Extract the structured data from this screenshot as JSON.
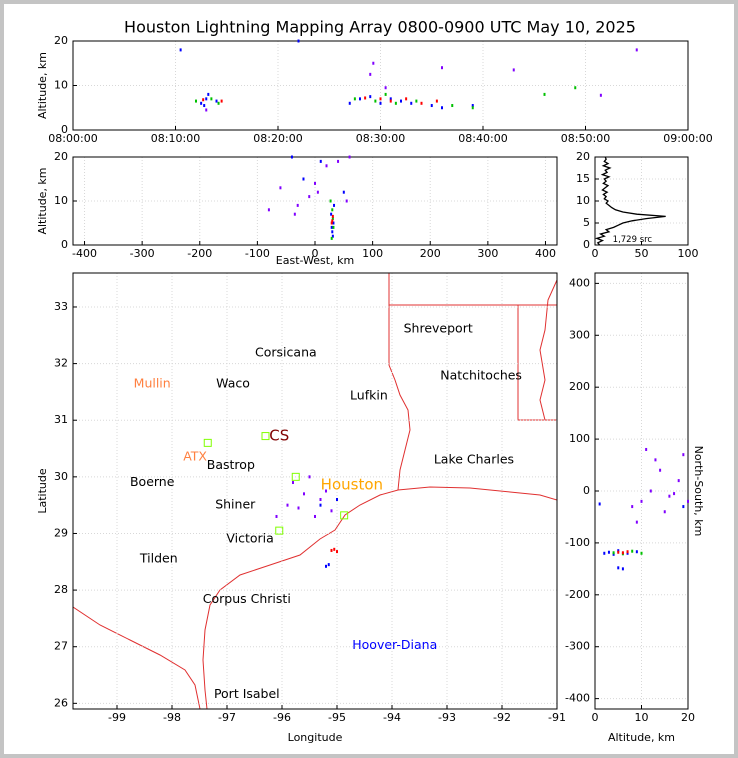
{
  "chart_data": [
    {
      "type": "scatter",
      "title": "Houston Lightning Mapping Array 0800-0900 UTC May 10, 2025",
      "ylabel": "Altitude, km",
      "xlim": [
        0,
        60
      ],
      "xticks": [
        {
          "value": 0,
          "label": "08:00:00"
        },
        {
          "value": 10,
          "label": "08:10:00"
        },
        {
          "value": 20,
          "label": "08:20:00"
        },
        {
          "value": 30,
          "label": "08:30:00"
        },
        {
          "value": 40,
          "label": "08:40:00"
        },
        {
          "value": 50,
          "label": "08:50:00"
        },
        {
          "value": 60,
          "label": "09:00:00"
        }
      ],
      "ylim": [
        0,
        20
      ],
      "yticks": [
        0,
        10,
        20
      ],
      "grid": true,
      "series": [
        {
          "color": "#0000ff",
          "x": [
            12.5,
            13,
            12.8,
            14,
            13.2,
            27,
            28,
            29,
            30,
            31,
            32,
            33,
            35,
            36,
            39,
            10.5,
            22
          ],
          "values": [
            6,
            7,
            5.5,
            6.5,
            8,
            6,
            7,
            7.5,
            6,
            7,
            6.5,
            6,
            5.5,
            5,
            5.5,
            18,
            20
          ]
        },
        {
          "color": "#00c000",
          "x": [
            12,
            13.5,
            14.2,
            27.5,
            29.5,
            30.5,
            31.5,
            33.5,
            37,
            39,
            46,
            49
          ],
          "values": [
            6.5,
            7,
            6,
            7,
            6.5,
            8,
            6,
            6.5,
            5.5,
            5,
            8,
            9.5
          ]
        },
        {
          "color": "#ff0000",
          "x": [
            12.7,
            14.5,
            28.5,
            30,
            31,
            32.5,
            34,
            35.5
          ],
          "values": [
            6.8,
            6.5,
            7.2,
            7,
            6.5,
            7,
            6,
            6.5
          ]
        },
        {
          "color": "#8000ff",
          "x": [
            13,
            29,
            29.3,
            30.5,
            36,
            43,
            51.5,
            55
          ],
          "values": [
            4.5,
            12.5,
            15,
            9.5,
            14,
            13.5,
            7.8,
            18
          ]
        }
      ]
    },
    {
      "type": "scatter",
      "xlabel": "East-West, km",
      "ylabel": "Altitude, km",
      "xlim": [
        -420,
        420
      ],
      "xticks": [
        -400,
        -300,
        -200,
        -100,
        0,
        100,
        200,
        300,
        400
      ],
      "ylim": [
        0,
        20
      ],
      "yticks": [
        0,
        10,
        20
      ],
      "grid": true,
      "series": [
        {
          "color": "#0000ff",
          "x": [
            30,
            32,
            28,
            31,
            33,
            29,
            -40,
            10,
            -20,
            50
          ],
          "values": [
            3,
            5,
            7,
            2,
            9,
            4,
            20,
            19,
            15,
            12
          ]
        },
        {
          "color": "#00c000",
          "x": [
            31,
            30,
            29,
            32,
            27
          ],
          "values": [
            6,
            8,
            1.5,
            4,
            10
          ]
        },
        {
          "color": "#ff0000",
          "x": [
            30,
            31,
            29
          ],
          "values": [
            5.5,
            6.5,
            5
          ]
        },
        {
          "color": "#8000ff",
          "x": [
            0,
            -30,
            -80,
            -35,
            55,
            20,
            5,
            -10,
            40,
            60,
            -60
          ],
          "values": [
            14,
            9,
            8,
            7,
            10,
            18,
            12,
            11,
            19,
            20,
            13
          ]
        }
      ]
    },
    {
      "type": "line",
      "xlim": [
        0,
        100
      ],
      "xticks": [
        0,
        50,
        100
      ],
      "ylim": [
        0,
        20
      ],
      "yticks": [
        0,
        5,
        10,
        15,
        20
      ],
      "grid": true,
      "annotations": [
        {
          "text": "1,729 src",
          "x": 19,
          "y": 1.2
        }
      ],
      "series": [
        {
          "color": "#000000",
          "x": [
            5,
            3,
            8,
            2,
            10,
            6,
            15,
            12,
            20,
            25,
            30,
            40,
            55,
            76,
            45,
            30,
            22,
            18,
            15,
            12,
            14,
            10,
            12,
            9,
            13,
            8,
            11,
            14,
            9,
            12,
            10,
            15,
            8,
            13,
            11,
            16,
            9,
            14,
            10,
            12,
            11
          ],
          "values": [
            0,
            0.5,
            1,
            1.5,
            2,
            2.5,
            3,
            3.5,
            4,
            4.5,
            5,
            5.5,
            6,
            6.5,
            7,
            7.5,
            8,
            8.5,
            9,
            9.5,
            10,
            10.5,
            11,
            11.5,
            12,
            12.5,
            13,
            13.5,
            14,
            14.5,
            15,
            15.5,
            16,
            16.5,
            17,
            17.5,
            18,
            18.5,
            19,
            19.5,
            20
          ]
        }
      ]
    },
    {
      "type": "map",
      "xlabel": "Longitude",
      "ylabel": "Latitude",
      "xlim": [
        -99.8,
        -91
      ],
      "xticks": [
        -99,
        -98,
        -97,
        -96,
        -95,
        -94,
        -93,
        -92,
        -91
      ],
      "ylim": [
        25.9,
        33.6
      ],
      "yticks": [
        26,
        27,
        28,
        29,
        30,
        31,
        32,
        33
      ],
      "grid": true,
      "annotations": [
        {
          "text": "Shreveport",
          "x": -93.16,
          "y": 32.61,
          "color": "#000000"
        },
        {
          "text": "Corsicana",
          "x": -95.93,
          "y": 32.19,
          "color": "#000000"
        },
        {
          "text": "Mullin",
          "x": -98.36,
          "y": 31.64,
          "color": "#ff8040"
        },
        {
          "text": "Waco",
          "x": -96.89,
          "y": 31.64,
          "color": "#000000"
        },
        {
          "text": "Natchitoches",
          "x": -92.38,
          "y": 31.78,
          "color": "#000000"
        },
        {
          "text": "Lufkin",
          "x": -94.42,
          "y": 31.43,
          "color": "#000000"
        },
        {
          "text": "CS",
          "x": -96.05,
          "y": 30.72,
          "color": "#800000"
        },
        {
          "text": "ATX",
          "x": -97.58,
          "y": 30.35,
          "color": "#ff8040"
        },
        {
          "text": "Bastrop",
          "x": -96.93,
          "y": 30.2,
          "color": "#000000"
        },
        {
          "text": "Lake Charles",
          "x": -92.51,
          "y": 30.3,
          "color": "#000000"
        },
        {
          "text": "Boerne",
          "x": -98.36,
          "y": 29.9,
          "color": "#000000"
        },
        {
          "text": "Houston",
          "x": -94.73,
          "y": 29.86,
          "color": "#ffa500"
        },
        {
          "text": "Shiner",
          "x": -96.85,
          "y": 29.5,
          "color": "#000000"
        },
        {
          "text": "Victoria",
          "x": -96.58,
          "y": 28.9,
          "color": "#000000"
        },
        {
          "text": "Tilden",
          "x": -98.24,
          "y": 28.55,
          "color": "#000000"
        },
        {
          "text": "Corpus Christi",
          "x": -96.64,
          "y": 27.83,
          "color": "#000000"
        },
        {
          "text": "Hoover-Diana",
          "x": -93.95,
          "y": 27.02,
          "color": "#0000ff"
        },
        {
          "text": "Port Isabel",
          "x": -96.64,
          "y": 26.16,
          "color": "#000000"
        }
      ],
      "series": [
        {
          "color": "#8000ff",
          "x": [
            -95.9,
            -95.6,
            -95.5,
            -95.8,
            -95.3,
            -95.1,
            -96.1,
            -95.4,
            -95.7,
            -95.2
          ],
          "values": [
            29.5,
            29.7,
            30.0,
            29.9,
            29.6,
            29.4,
            29.3,
            29.3,
            29.45,
            29.75
          ]
        },
        {
          "color": "#0000ff",
          "x": [
            -95.15,
            -95.2,
            -95.0,
            -95.3
          ],
          "values": [
            28.45,
            28.42,
            29.6,
            29.5
          ]
        },
        {
          "color": "#ff0000",
          "x": [
            -95.05,
            -95.1,
            -95.0
          ],
          "values": [
            28.72,
            28.7,
            28.68
          ]
        },
        {
          "color": "#80ff00",
          "marker": "square",
          "x": [
            -97.35,
            -96.3,
            -94.87,
            -96.05,
            -95.75
          ],
          "values": [
            30.6,
            30.72,
            29.32,
            29.05,
            30.0
          ]
        }
      ]
    },
    {
      "type": "scatter",
      "xlabel": "Altitude, km",
      "ylabel": "North-South, km",
      "xlim": [
        0,
        20
      ],
      "xticks": [
        0,
        10,
        20
      ],
      "ylim": [
        -420,
        420
      ],
      "yticks": [
        -400,
        -300,
        -200,
        -100,
        0,
        100,
        200,
        300,
        400
      ],
      "grid": true,
      "series": [
        {
          "color": "#0000ff",
          "x": [
            2,
            3,
            4,
            5,
            7,
            9,
            6,
            5,
            1,
            19
          ],
          "values": [
            -120,
            -118,
            -122,
            -115,
            -120,
            -117,
            -150,
            -148,
            -25,
            -30
          ]
        },
        {
          "color": "#00c000",
          "x": [
            4,
            6,
            8,
            10
          ],
          "values": [
            -119,
            -121,
            -116,
            -120
          ]
        },
        {
          "color": "#ff0000",
          "x": [
            5,
            6,
            7
          ],
          "values": [
            -118,
            -119,
            -117
          ]
        },
        {
          "color": "#8000ff",
          "x": [
            10,
            12,
            14,
            16,
            18,
            9,
            15,
            11,
            13,
            17,
            19,
            8,
            20
          ],
          "values": [
            -20,
            0,
            40,
            -10,
            20,
            -60,
            -40,
            80,
            60,
            -5,
            70,
            -30,
            -20
          ]
        }
      ]
    }
  ]
}
